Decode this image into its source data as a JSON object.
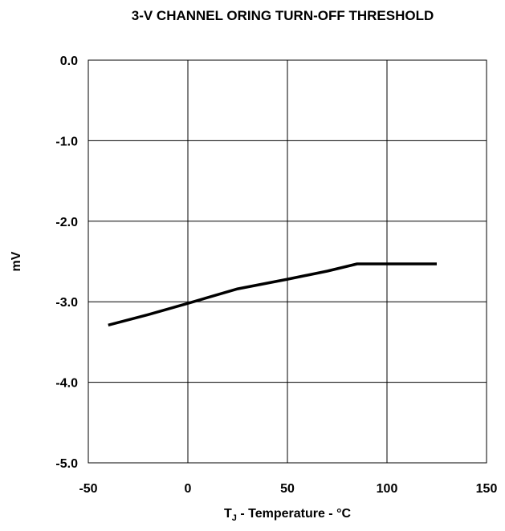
{
  "chart_data": {
    "type": "line",
    "title": "3-V CHANNEL ORING TURN-OFF THRESHOLD",
    "xlabel": {
      "main": "T",
      "subscript": "J",
      "rest": " - Temperature - °C"
    },
    "ylabel": "mV",
    "xlim": [
      -50,
      150
    ],
    "ylim": [
      -5.0,
      0.0
    ],
    "x_ticks": [
      "-50",
      "0",
      "50",
      "100",
      "150"
    ],
    "y_ticks": [
      "0.0",
      "-1.0",
      "-2.0",
      "-3.0",
      "-4.0",
      "-5.0"
    ],
    "grid": true,
    "series": [
      {
        "x": [
          -40,
          -20,
          0,
          25,
          50,
          70,
          85,
          100,
          125
        ],
        "y": [
          -3.29,
          -3.16,
          -3.02,
          -2.84,
          -2.72,
          -2.62,
          -2.53,
          -2.53,
          -2.53
        ],
        "color": "#000000"
      }
    ]
  }
}
